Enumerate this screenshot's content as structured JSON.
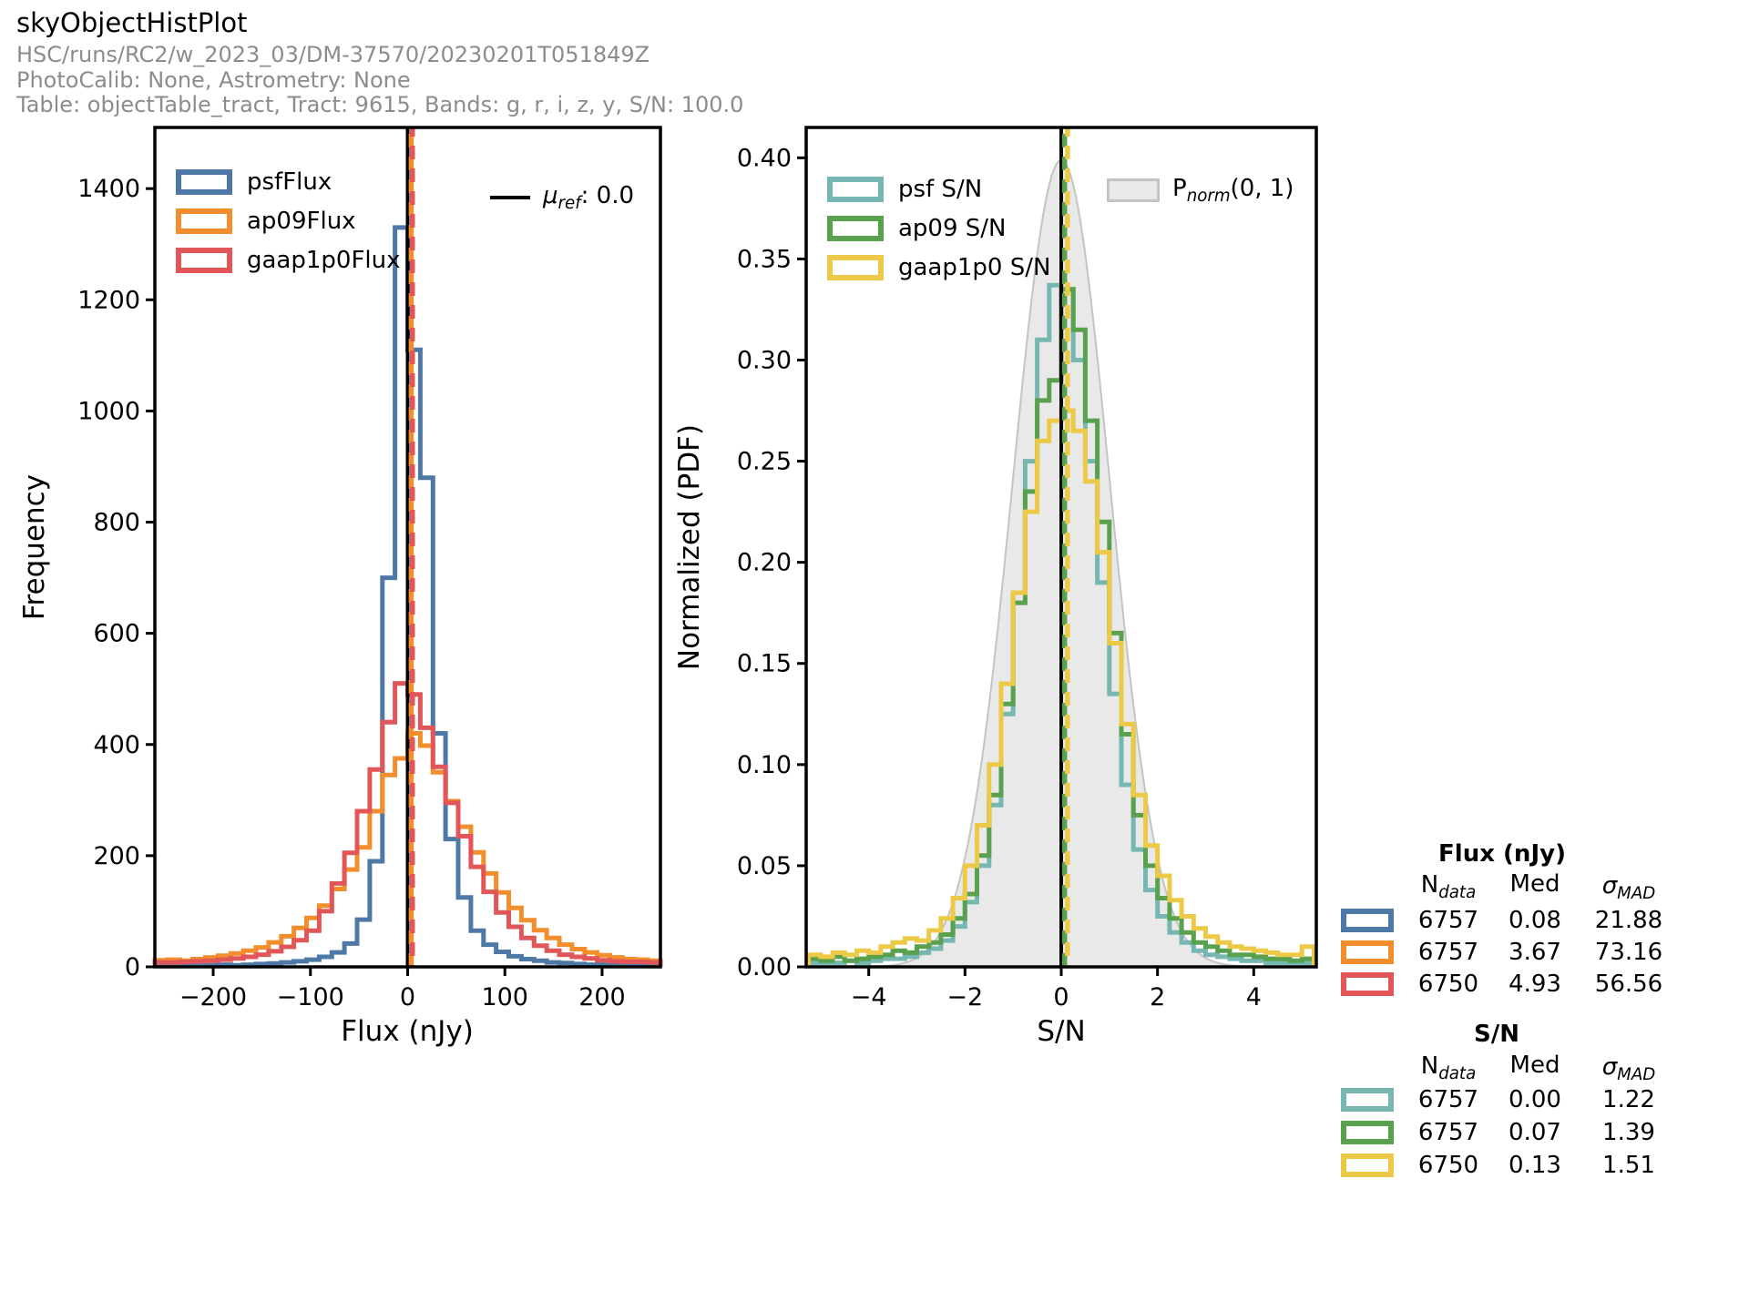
{
  "header": {
    "title": "skyObjectHistPlot",
    "run": "HSC/runs/RC2/w_2023_03/DM-37570/20230201T051849Z",
    "calib": "PhotoCalib: None, Astrometry: None",
    "table": "Table: objectTable_tract, Tract: 9615, Bands: g, r, i, z, y, S/N: 100.0"
  },
  "colors": {
    "psfFlux": "#4e79a7",
    "ap09Flux": "#f28e2b",
    "gaap1p0Flux": "#e15759",
    "psfSN": "#76b7b2",
    "ap09SN": "#59a14f",
    "gaap1p0SN": "#edc948",
    "pdf_fill": "#e9e9e9",
    "pdf_edge": "#c4c4c4",
    "subtitle_gray": "#8c8c8c"
  },
  "mu_ref_legend": {
    "prefix": "μ",
    "sub": "ref",
    "suffix": ": 0.0"
  },
  "pnorm_legend": {
    "prefix": "P",
    "sub": "norm",
    "suffix": "(0, 1)"
  },
  "chart_data": [
    {
      "type": "histogram-step",
      "xlabel": "Flux (nJy)",
      "ylabel": "Frequency",
      "xlim": [
        -260,
        260
      ],
      "ylim": [
        0,
        1510
      ],
      "xticks": [
        -200,
        -100,
        0,
        100,
        200
      ],
      "xtick_labels": [
        "−200",
        "−100",
        "0",
        "100",
        "200"
      ],
      "yticks": [
        0,
        200,
        400,
        600,
        800,
        1000,
        1200,
        1400
      ],
      "ytick_labels": [
        "0",
        "200",
        "400",
        "600",
        "800",
        "1000",
        "1200",
        "1400"
      ],
      "bin_start": -260,
      "bin_width": 13,
      "series": [
        {
          "name": "psfFlux",
          "color": "#4e79a7",
          "values": [
            2,
            2,
            3,
            2,
            3,
            4,
            3,
            4,
            5,
            6,
            8,
            10,
            13,
            18,
            26,
            42,
            85,
            190,
            700,
            1330,
            1110,
            880,
            420,
            230,
            125,
            65,
            40,
            27,
            19,
            14,
            11,
            8,
            7,
            5,
            4,
            4,
            3,
            3,
            2,
            2
          ]
        },
        {
          "name": "ap09Flux",
          "color": "#f28e2b",
          "values": [
            12,
            13,
            11,
            14,
            17,
            20,
            24,
            29,
            35,
            44,
            55,
            70,
            88,
            110,
            140,
            175,
            215,
            280,
            345,
            375,
            420,
            398,
            350,
            298,
            252,
            206,
            168,
            134,
            106,
            84,
            66,
            52,
            40,
            32,
            26,
            21,
            17,
            14,
            13,
            11
          ]
        },
        {
          "name": "gaap1p0Flux",
          "color": "#e15759",
          "values": [
            8,
            8,
            9,
            10,
            11,
            13,
            15,
            18,
            22,
            28,
            36,
            48,
            65,
            100,
            150,
            205,
            280,
            355,
            440,
            510,
            490,
            430,
            360,
            295,
            235,
            180,
            135,
            98,
            72,
            52,
            38,
            29,
            22,
            18,
            15,
            12,
            10,
            9,
            9,
            8
          ]
        }
      ],
      "vlines": [
        {
          "x": 0,
          "color": "#000000",
          "style": "solid",
          "label": "μref: 0.0"
        },
        {
          "x": 3.67,
          "color": "#f28e2b",
          "style": "dashed"
        },
        {
          "x": 4.93,
          "color": "#e15759",
          "style": "dashed"
        }
      ]
    },
    {
      "type": "histogram-step",
      "xlabel": "S/N",
      "ylabel": "Normalized (PDF)",
      "xlim": [
        -5.3,
        5.3
      ],
      "ylim": [
        0,
        0.415
      ],
      "xticks": [
        -4,
        -2,
        0,
        2,
        4
      ],
      "xtick_labels": [
        "−4",
        "−2",
        "0",
        "2",
        "4"
      ],
      "yticks": [
        0,
        0.05,
        0.1,
        0.15,
        0.2,
        0.25,
        0.3,
        0.35,
        0.4
      ],
      "ytick_labels": [
        "0.00",
        "0.05",
        "0.10",
        "0.15",
        "0.20",
        "0.25",
        "0.30",
        "0.35",
        "0.40"
      ],
      "bin_start": -5.25,
      "bin_width": 0.25,
      "normal_pdf": {
        "mean": 0,
        "sigma": 1,
        "label": "Pnorm(0, 1)",
        "fill": "#e9e9e9",
        "edge": "#c4c4c4"
      },
      "series": [
        {
          "name": "psf S/N",
          "color": "#76b7b2",
          "values": [
            0.002,
            0.002,
            0.002,
            0.003,
            0.002,
            0.003,
            0.004,
            0.004,
            0.005,
            0.007,
            0.009,
            0.013,
            0.02,
            0.032,
            0.05,
            0.08,
            0.125,
            0.185,
            0.25,
            0.31,
            0.337,
            0.335,
            0.3,
            0.25,
            0.19,
            0.135,
            0.09,
            0.058,
            0.038,
            0.025,
            0.017,
            0.012,
            0.008,
            0.006,
            0.005,
            0.004,
            0.003,
            0.003,
            0.002,
            0.002,
            0.002,
            0.002
          ]
        },
        {
          "name": "ap09 S/N",
          "color": "#59a14f",
          "values": [
            0.004,
            0.003,
            0.005,
            0.003,
            0.004,
            0.005,
            0.006,
            0.008,
            0.007,
            0.01,
            0.012,
            0.016,
            0.024,
            0.036,
            0.055,
            0.085,
            0.13,
            0.18,
            0.235,
            0.28,
            0.29,
            0.335,
            0.315,
            0.27,
            0.22,
            0.165,
            0.115,
            0.075,
            0.05,
            0.034,
            0.024,
            0.017,
            0.012,
            0.01,
            0.008,
            0.006,
            0.006,
            0.005,
            0.004,
            0.004,
            0.003,
            0.004
          ]
        },
        {
          "name": "gaap1p0 S/N",
          "color": "#edc948",
          "values": [
            0.006,
            0.005,
            0.007,
            0.006,
            0.008,
            0.007,
            0.01,
            0.012,
            0.014,
            0.013,
            0.018,
            0.024,
            0.034,
            0.05,
            0.07,
            0.1,
            0.14,
            0.185,
            0.225,
            0.26,
            0.27,
            0.275,
            0.265,
            0.24,
            0.205,
            0.16,
            0.12,
            0.085,
            0.06,
            0.045,
            0.033,
            0.025,
            0.019,
            0.015,
            0.012,
            0.01,
            0.009,
            0.008,
            0.007,
            0.006,
            0.006,
            0.01
          ]
        }
      ],
      "vlines": [
        {
          "x": 0,
          "color": "#000000",
          "style": "solid"
        },
        {
          "x": 0.07,
          "color": "#59a14f",
          "style": "dashed"
        },
        {
          "x": 0.13,
          "color": "#edc948",
          "style": "dashed"
        }
      ]
    }
  ],
  "stats": {
    "columns": {
      "n": {
        "prefix": "N",
        "sub": "data"
      },
      "med": "Med",
      "sigma": {
        "prefix": "σ",
        "sub": "MAD"
      }
    },
    "flux": {
      "header": "Flux (nJy)",
      "rows": [
        {
          "series": "psfFlux",
          "color": "#4e79a7",
          "n": "6757",
          "med": "0.08",
          "sigma": "21.88"
        },
        {
          "series": "ap09Flux",
          "color": "#f28e2b",
          "n": "6757",
          "med": "3.67",
          "sigma": "73.16"
        },
        {
          "series": "gaap1p0Flux",
          "color": "#e15759",
          "n": "6750",
          "med": "4.93",
          "sigma": "56.56"
        }
      ]
    },
    "sn": {
      "header": "S/N",
      "rows": [
        {
          "series": "psf S/N",
          "color": "#76b7b2",
          "n": "6757",
          "med": "0.00",
          "sigma": "1.22"
        },
        {
          "series": "ap09 S/N",
          "color": "#59a14f",
          "n": "6757",
          "med": "0.07",
          "sigma": "1.39"
        },
        {
          "series": "gaap1p0 S/N",
          "color": "#edc948",
          "n": "6750",
          "med": "0.13",
          "sigma": "1.51"
        }
      ]
    }
  }
}
